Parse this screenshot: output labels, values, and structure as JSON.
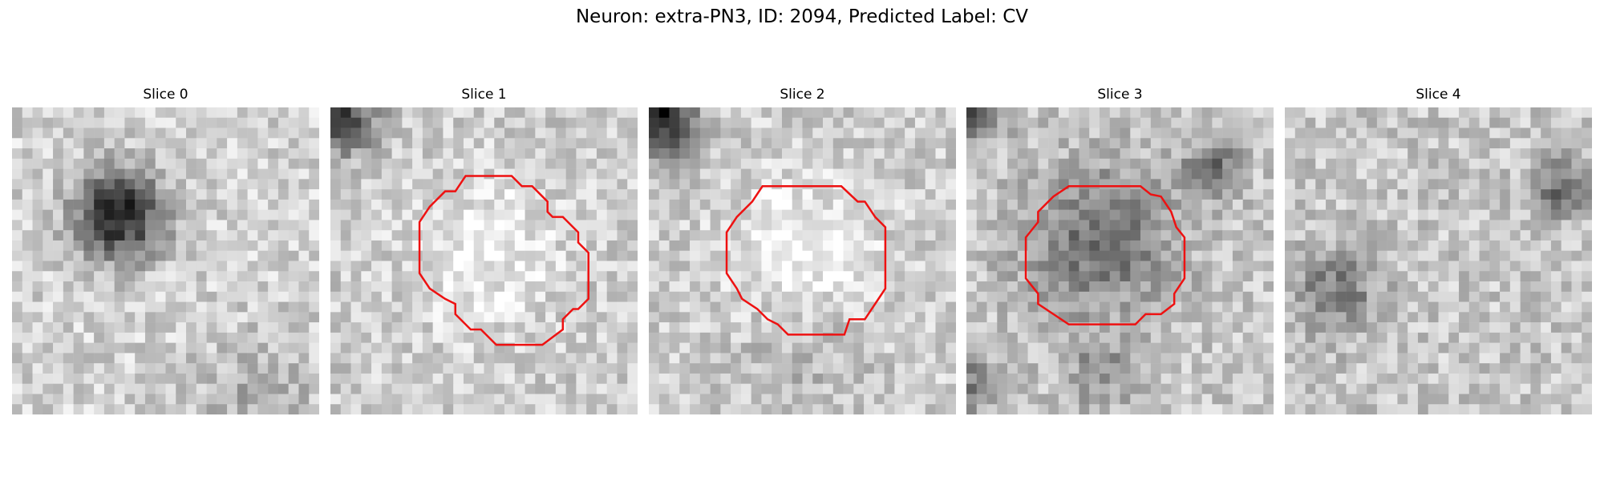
{
  "title": "Neuron: extra-PN3, ID: 2094, Predicted Label: CV",
  "panels": [
    {
      "title": "Slice 0"
    },
    {
      "title": "Slice 1"
    },
    {
      "title": "Slice 2"
    },
    {
      "title": "Slice 3"
    },
    {
      "title": "Slice 4"
    }
  ]
}
